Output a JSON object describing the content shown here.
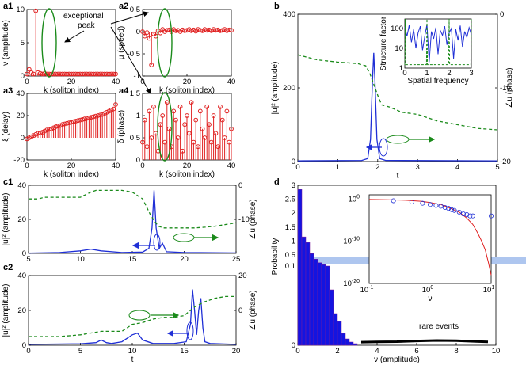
{
  "colors": {
    "red": "#e02020",
    "blue": "#1f2fd6",
    "green": "#1a8a1a",
    "bar": "#1414e0",
    "band": "#aec6ef"
  },
  "labels": {
    "a1": "a1",
    "a2": "a2",
    "a3": "a3",
    "a4": "a4",
    "b": "b",
    "c1": "c1",
    "c2": "c2",
    "d": "d",
    "exceptional": "exceptional",
    "peak": "peak",
    "rare_events": "rare events",
    "k_axis": "k (soliton index)",
    "nu_amp": "ν (amplitude)",
    "mu_speed": "μ (speed)",
    "xi_delay": "ξ (delay)",
    "delta_phase": "δ (phase)",
    "u2_amp": "|u|² (amplitude)",
    "angle_phase": "∠u (phase)",
    "t": "t",
    "structure_factor": "Structure factor",
    "spatial_freq": "Spatial frequency",
    "probability": "Probability",
    "nu": "ν",
    "nu_amplitude": "ν (amplitude)"
  },
  "chart_data": [
    {
      "id": "a1",
      "type": "scatter",
      "style": "stem",
      "xlabel": "k (soliton index)",
      "ylabel": "ν (amplitude)",
      "xlim": [
        0,
        40
      ],
      "ylim": [
        0,
        10
      ],
      "xticks": [
        0,
        20,
        40
      ],
      "yticks": [
        0,
        5,
        10
      ],
      "x": [
        0,
        1,
        2,
        3,
        4,
        5,
        6,
        7,
        8,
        9,
        10,
        11,
        12,
        13,
        14,
        15,
        16,
        17,
        18,
        19,
        20,
        21,
        22,
        23,
        24,
        25,
        26,
        27,
        28,
        29,
        30,
        31,
        32,
        33,
        34,
        35,
        36,
        37,
        38,
        39,
        40
      ],
      "y": [
        0.3,
        1.0,
        0.5,
        0.3,
        9.8,
        0.5,
        0.4,
        0.3,
        0.4,
        0.3,
        0.3,
        0.3,
        0.3,
        0.3,
        0.3,
        0.3,
        0.3,
        0.3,
        0.3,
        0.3,
        0.3,
        0.3,
        0.3,
        0.3,
        0.3,
        0.3,
        0.3,
        0.3,
        0.3,
        0.3,
        0.3,
        0.3,
        0.3,
        0.3,
        0.3,
        0.3,
        0.3,
        0.3,
        0.3,
        0.3,
        0.3
      ]
    },
    {
      "id": "a2",
      "type": "scatter",
      "style": "stem",
      "xlabel": "k (soliton index)",
      "ylabel": "μ (speed)",
      "xlim": [
        0,
        40
      ],
      "ylim": [
        -1,
        0.5
      ],
      "xticks": [
        0,
        20,
        40
      ],
      "yticks": [
        -1,
        -0.5,
        0,
        0.5
      ],
      "x": [
        0,
        1,
        2,
        3,
        4,
        5,
        6,
        7,
        8,
        9,
        10,
        11,
        12,
        13,
        14,
        15,
        16,
        17,
        18,
        19,
        20,
        21,
        22,
        23,
        24,
        25,
        26,
        27,
        28,
        29,
        30,
        31,
        32,
        33,
        34,
        35,
        36,
        37,
        38,
        39,
        40
      ],
      "y": [
        0.0,
        -0.1,
        -0.02,
        -0.15,
        -0.75,
        -0.05,
        -0.1,
        0.02,
        -0.03,
        0.05,
        0.0,
        0.03,
        0.04,
        0.0,
        0.05,
        0.02,
        0.03,
        0.0,
        0.04,
        0.02,
        0.03,
        0.05,
        0.02,
        0.04,
        0.01,
        0.05,
        0.03,
        0.02,
        0.05,
        0.03,
        0.04,
        0.02,
        0.05,
        0.03,
        0.04,
        0.02,
        0.03,
        0.05,
        0.02,
        0.04,
        0.03
      ]
    },
    {
      "id": "a3",
      "type": "scatter",
      "style": "stem",
      "xlabel": "k (soliton index)",
      "ylabel": "ξ (delay)",
      "xlim": [
        0,
        40
      ],
      "ylim": [
        -20,
        40
      ],
      "xticks": [
        0,
        20,
        40
      ],
      "yticks": [
        -20,
        0,
        20,
        40
      ],
      "x": [
        0,
        1,
        2,
        3,
        4,
        5,
        6,
        7,
        8,
        9,
        10,
        11,
        12,
        13,
        14,
        15,
        16,
        17,
        18,
        19,
        20,
        21,
        22,
        23,
        24,
        25,
        26,
        27,
        28,
        29,
        30,
        31,
        32,
        33,
        34,
        35,
        36,
        37,
        38,
        39,
        40
      ],
      "y": [
        -1,
        0,
        1,
        2,
        3,
        4,
        4.5,
        5,
        6,
        7,
        7.5,
        8,
        9,
        10,
        10.5,
        11,
        12,
        12.5,
        13,
        13.5,
        14,
        14.5,
        15,
        15.5,
        16,
        16.5,
        17,
        17.5,
        18,
        18.5,
        19,
        19.5,
        20,
        20.5,
        21,
        22,
        23,
        24,
        25,
        26,
        30
      ]
    },
    {
      "id": "a4",
      "type": "scatter",
      "style": "stem",
      "xlabel": "k (soliton index)",
      "ylabel": "δ (phase)",
      "xlim": [
        0,
        40
      ],
      "ylim": [
        0,
        1.5
      ],
      "xticks": [
        0,
        20,
        40
      ],
      "yticks": [
        0,
        0.5,
        1,
        1.5
      ],
      "x": [
        0,
        1,
        2,
        3,
        4,
        5,
        6,
        7,
        8,
        9,
        10,
        11,
        12,
        13,
        14,
        15,
        16,
        17,
        18,
        19,
        20,
        21,
        22,
        23,
        24,
        25,
        26,
        27,
        28,
        29,
        30,
        31,
        32,
        33,
        34,
        35,
        36,
        37,
        38,
        39,
        40
      ],
      "y": [
        0.4,
        0.9,
        0.3,
        1.1,
        0.5,
        1.2,
        0.6,
        0.2,
        0.8,
        1.0,
        0.4,
        1.3,
        0.7,
        0.3,
        1.1,
        0.9,
        0.5,
        1.2,
        0.2,
        0.8,
        1.0,
        0.6,
        1.3,
        0.4,
        0.9,
        0.3,
        1.1,
        0.7,
        0.5,
        1.2,
        0.8,
        0.4,
        1.0,
        0.6,
        0.3,
        1.2,
        0.9,
        0.5,
        1.1,
        0.4,
        0.7
      ]
    },
    {
      "id": "b",
      "type": "line",
      "xlabel": "t",
      "ylabel": "|u|² (amplitude)",
      "y2label": "∠u (phase)",
      "xlim": [
        0,
        5
      ],
      "ylim": [
        0,
        400
      ],
      "y2lim": [
        -20,
        0
      ],
      "xticks": [
        0,
        1,
        2,
        3,
        4,
        5
      ],
      "yticks": [
        0,
        200,
        400
      ],
      "y2ticks": [
        -20,
        -10,
        0
      ],
      "amplitude": {
        "x": [
          0,
          1.6,
          1.75,
          1.82,
          1.87,
          1.9,
          1.93,
          1.98,
          2.05,
          2.2,
          5
        ],
        "y": [
          2,
          3,
          8,
          60,
          220,
          295,
          220,
          60,
          8,
          3,
          2
        ]
      },
      "phase": {
        "x": [
          0,
          0.5,
          1.0,
          1.5,
          1.7,
          1.8,
          1.9,
          2.0,
          2.1,
          2.3,
          2.6,
          3.0,
          3.5,
          4.0,
          4.5,
          5.0
        ],
        "y": [
          -5.5,
          -6.2,
          -6.5,
          -6.7,
          -7.0,
          -8.0,
          -9.5,
          -11.0,
          -12.3,
          -12.6,
          -13.3,
          -13.6,
          -14.5,
          -15.0,
          -15.5,
          -15.7
        ]
      },
      "inset": {
        "xlabel": "Spatial frequency",
        "ylabel": "Structure factor",
        "xlim": [
          0,
          3
        ],
        "ylim_log": [
          1,
          300
        ],
        "xticks": [
          0,
          1,
          2,
          3
        ],
        "yticks": [
          1,
          10,
          100
        ],
        "blue": {
          "x": [
            0,
            0.1,
            0.2,
            0.3,
            0.4,
            0.5,
            0.6,
            0.7,
            0.8,
            0.9,
            1.0,
            1.1,
            1.2,
            1.3,
            1.4,
            1.5,
            1.6,
            1.7,
            1.8,
            1.9,
            2.0,
            2.1,
            2.2,
            2.3,
            2.4,
            2.5,
            2.6,
            2.7,
            2.8,
            2.9,
            3.0
          ],
          "y": [
            120,
            40,
            150,
            20,
            90,
            10,
            60,
            130,
            8,
            40,
            160,
            2,
            70,
            30,
            110,
            5,
            80,
            45,
            130,
            15,
            60,
            100,
            3,
            90,
            25,
            140,
            12,
            70,
            35,
            110,
            50
          ]
        },
        "green": {
          "x": [
            0,
            0.02,
            0.04,
            0.96,
            0.98,
            1.0,
            1.02,
            1.04,
            1.96,
            1.98,
            2.0,
            2.02,
            2.04,
            2.96,
            2.98,
            3.0
          ],
          "y": [
            1.5,
            300,
            1.5,
            1.5,
            1.5,
            300,
            1.5,
            1.5,
            1.5,
            1.5,
            300,
            1.5,
            1.5,
            1.5,
            1.5,
            300
          ]
        }
      }
    },
    {
      "id": "c1",
      "type": "line",
      "xlabel": "",
      "ylabel": "|u|² (amplitude)",
      "y2label": "∠u (phase)",
      "xlim": [
        5,
        25
      ],
      "ylim": [
        0,
        40
      ],
      "y2lim": [
        -20,
        0
      ],
      "xticks": [
        5,
        10,
        15,
        20,
        25
      ],
      "yticks": [
        0,
        20,
        40
      ],
      "y2ticks": [
        -10,
        0
      ],
      "amplitude": {
        "x": [
          5,
          8,
          10,
          11,
          12,
          14,
          16,
          16.6,
          16.9,
          17.1,
          17.3,
          17.6,
          17.9,
          18.3,
          20,
          25
        ],
        "y": [
          0.2,
          0.5,
          1.5,
          2.5,
          1.5,
          0.5,
          0.8,
          3,
          15,
          37,
          15,
          3,
          6,
          1,
          0.5,
          0.3
        ]
      },
      "phase": {
        "x": [
          5,
          6,
          6.5,
          10,
          11,
          11.5,
          12,
          14,
          15,
          16,
          16.8,
          17.5,
          18,
          19,
          21,
          22,
          23,
          25
        ],
        "y": [
          -4,
          -4,
          -3.5,
          -3.5,
          -2,
          -1.5,
          -1.5,
          -1.5,
          -2,
          -4,
          -9,
          -12,
          -12.5,
          -12.5,
          -12.5,
          -12.3,
          -12,
          -11
        ]
      }
    },
    {
      "id": "c2",
      "type": "line",
      "xlabel": "t",
      "ylabel": "|u|² (amplitude)",
      "y2label": "∠u (phase)",
      "xlim": [
        0,
        20
      ],
      "ylim": [
        0,
        40
      ],
      "y2lim": [
        -20,
        20
      ],
      "xticks": [
        0,
        5,
        10,
        15,
        20
      ],
      "yticks": [
        0,
        20,
        40
      ],
      "y2ticks": [
        0,
        20
      ],
      "amplitude": {
        "x": [
          0,
          5,
          6.5,
          7,
          7.5,
          8,
          9,
          10,
          10.5,
          11,
          12,
          14,
          15.2,
          15.6,
          15.8,
          16,
          16.2,
          16.4,
          16.6,
          16.8,
          17,
          17.5,
          20
        ],
        "y": [
          0.5,
          0.8,
          1.5,
          3,
          1.5,
          1,
          2,
          6,
          7,
          3,
          1,
          1,
          2,
          12,
          32,
          20,
          6,
          20,
          27,
          10,
          2,
          1,
          0.5
        ]
      },
      "phase": {
        "x": [
          0,
          3,
          5,
          7,
          9,
          10,
          11,
          12,
          13,
          14,
          15,
          16,
          17,
          18,
          19,
          20
        ],
        "y": [
          -15,
          -15,
          -14,
          -12,
          -12,
          -8,
          -7,
          -5,
          -4,
          -4,
          -3,
          2,
          5,
          7,
          8,
          8
        ]
      }
    },
    {
      "id": "d",
      "type": "bar",
      "xlabel": "ν (amplitude)",
      "ylabel": "Probability",
      "xlim": [
        0,
        10
      ],
      "xticks": [
        0,
        2,
        4,
        6,
        8,
        10
      ],
      "yticks": [
        0,
        0.1,
        0.2,
        0.3,
        0.4,
        0.5,
        1,
        1.5,
        2,
        2.5,
        3
      ],
      "bin_width": 0.2,
      "bins": [
        0.0,
        0.2,
        0.4,
        0.6,
        0.8,
        1.0,
        1.2,
        1.4,
        1.6,
        1.8,
        2.0,
        2.2,
        2.4,
        2.6,
        2.8
      ],
      "values": [
        2.85,
        1.15,
        0.95,
        0.55,
        0.35,
        0.22,
        0.15,
        0.1,
        0.07,
        0.04,
        0.03,
        0.015,
        0.008,
        0.004,
        0.002
      ],
      "rare_events": {
        "x": [
          3.2,
          4,
          5,
          6,
          7,
          8,
          9,
          9.6
        ],
        "y": [
          0.003,
          0.004,
          0.005,
          0.008,
          0.01,
          0.009,
          0.006,
          0.004
        ]
      },
      "inset": {
        "xlabel": "ν",
        "xlim_log": [
          0.1,
          10
        ],
        "ylim_log": [
          1e-20,
          10
        ],
        "xticks": [
          "10^{-1}",
          "10^{0}",
          "10^{1}"
        ],
        "yticks": [
          "10^{0}",
          "10^{-10}",
          "10^{-20}"
        ],
        "circles": {
          "x": [
            0.25,
            0.5,
            0.75,
            1.0,
            1.25,
            1.5,
            1.75,
            2.0,
            2.25,
            2.5,
            3,
            3.5,
            4,
            4.5,
            5,
            10
          ],
          "y": [
            0.4,
            0.2,
            0.1,
            0.05,
            0.03,
            0.02,
            0.01,
            0.006,
            0.003,
            0.002,
            0.0008,
            0.0003,
            0.0002,
            0.0001,
            0.0001,
            0.0001
          ]
        },
        "curve": {
          "x": [
            0.1,
            0.2,
            0.4,
            0.7,
            1,
            1.5,
            2,
            3,
            4,
            5,
            6,
            7,
            8,
            9,
            10
          ],
          "y": [
            0.8,
            0.7,
            0.5,
            0.3,
            0.15,
            0.05,
            0.01,
            0.0008,
            3e-05,
            1e-06,
            1e-08,
            1e-10,
            1e-12,
            1e-15,
            1e-18
          ]
        }
      }
    }
  ]
}
